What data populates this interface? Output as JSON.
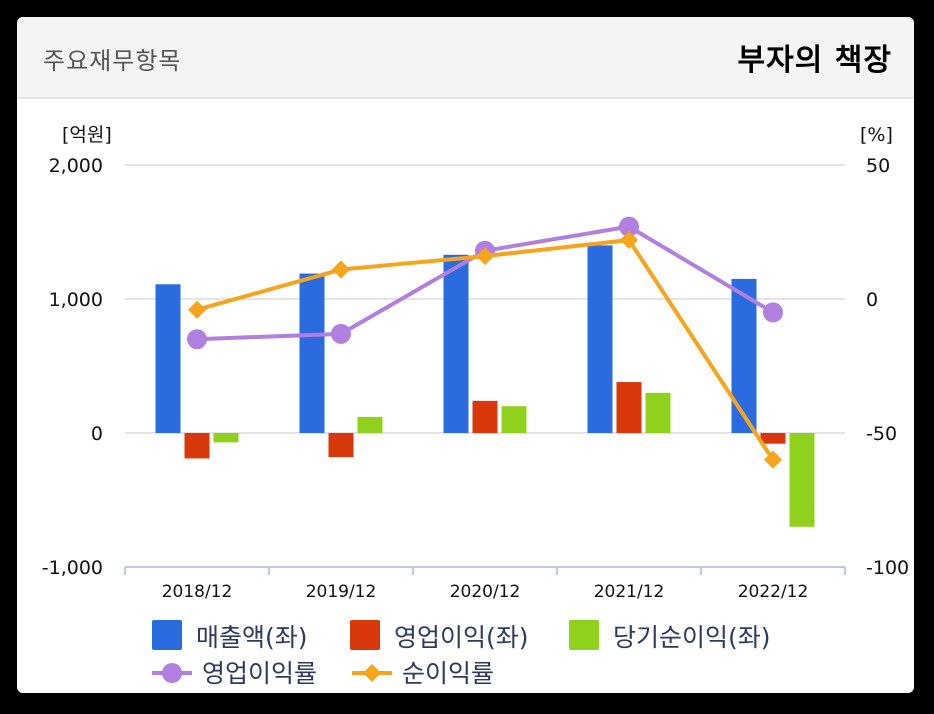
{
  "header": {
    "title": "주요재무항목",
    "brand": "부자의 책장"
  },
  "chart_data": {
    "type": "bar",
    "categories": [
      "2018/12",
      "2019/12",
      "2020/12",
      "2021/12",
      "2022/12"
    ],
    "left_axis": {
      "unit": "[억원]",
      "ylim": [
        -1000,
        2000
      ],
      "ticks": [
        2000,
        1000,
        0,
        -1000
      ],
      "tick_labels": [
        "2,000",
        "1,000",
        "0",
        "-1,000"
      ]
    },
    "right_axis": {
      "unit": "[%]",
      "ylim": [
        -100,
        50
      ],
      "ticks": [
        50,
        0,
        -50,
        -100
      ],
      "tick_labels": [
        "50",
        "0",
        "-50",
        "-100"
      ]
    },
    "series": [
      {
        "name": "매출액(좌)",
        "type": "bar",
        "axis": "left",
        "color": "#2a6be0",
        "values": [
          1110,
          1190,
          1330,
          1400,
          1150
        ]
      },
      {
        "name": "영업이익(좌)",
        "type": "bar",
        "axis": "left",
        "color": "#d9380d",
        "values": [
          -190,
          -180,
          240,
          380,
          -80
        ]
      },
      {
        "name": "당기순이익(좌)",
        "type": "bar",
        "axis": "left",
        "color": "#8fd11c",
        "values": [
          -70,
          120,
          200,
          300,
          -700
        ]
      },
      {
        "name": "영업이익률",
        "type": "line",
        "axis": "right",
        "color": "#b07fe0",
        "values": [
          -15,
          -13,
          18,
          27,
          -5
        ]
      },
      {
        "name": "순이익률",
        "type": "line",
        "axis": "right",
        "color": "#f7a41d",
        "values": [
          -4,
          11,
          16,
          22,
          -60
        ]
      }
    ],
    "grid": true,
    "legend": "bottom"
  }
}
